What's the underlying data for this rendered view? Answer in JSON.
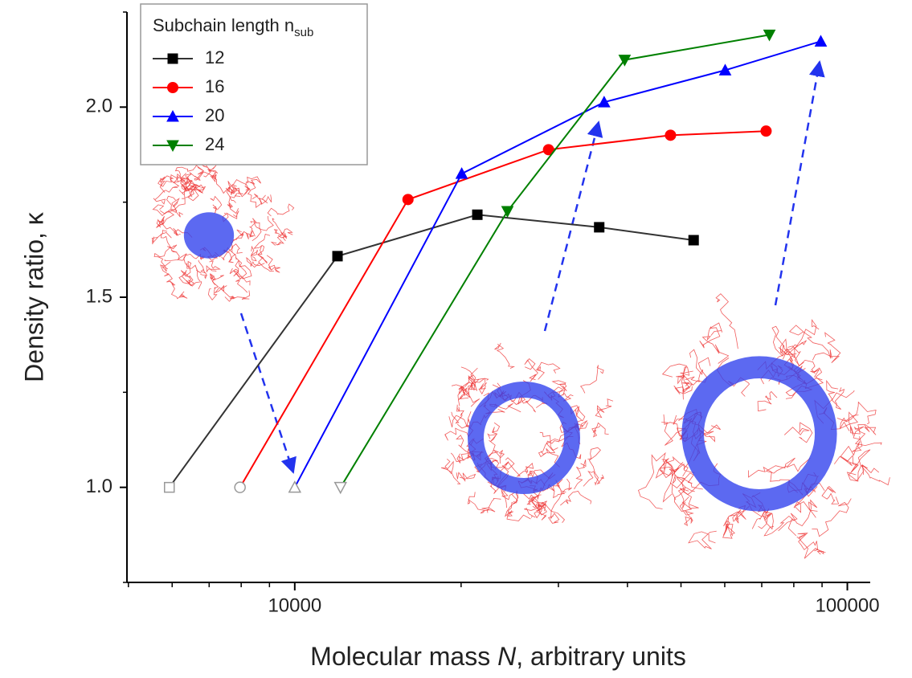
{
  "chart_data": {
    "type": "line",
    "x_label": [
      "Molecular mass ",
      "N",
      ", arbitrary units"
    ],
    "y_label": "Density ratio, κ",
    "legend_title": "Subchain length n",
    "legend_title_subscript": "sub",
    "log_x": true,
    "xlim": [
      4970,
      110000
    ],
    "ylim": [
      0.75,
      2.25
    ],
    "xticks": [
      10000,
      100000
    ],
    "xminorticks": [
      5000,
      6000,
      7000,
      8000,
      9000,
      20000,
      30000,
      40000,
      50000,
      60000,
      70000,
      80000,
      90000
    ],
    "yticks": [
      {
        "value": 1,
        "label": "1.0"
      },
      {
        "value": 1.5,
        "label": "1.5"
      },
      {
        "value": 2,
        "label": "2.0"
      }
    ],
    "yminorticks": [
      0.75,
      1.25,
      1.75,
      2.25
    ],
    "first_point_hollow": true,
    "hollow_color": "#999999",
    "series": [
      {
        "name": "12",
        "color": "#000000",
        "line_color": "#333333",
        "marker": "square",
        "x": [
          5930,
          11950,
          21400,
          35560,
          52700
        ],
        "values": [
          1.0,
          1.608,
          1.717,
          1.684,
          1.65
        ]
      },
      {
        "name": "16",
        "color": "#ff0000",
        "line_color": "#ff0000",
        "marker": "circle",
        "x": [
          7960,
          16030,
          28790,
          47860,
          71280
        ],
        "values": [
          1.0,
          1.757,
          1.888,
          1.926,
          1.937
        ]
      },
      {
        "name": "20",
        "color": "#0000ff",
        "line_color": "#0000ff",
        "marker": "triangle-up",
        "x": [
          10000,
          20050,
          36300,
          60100,
          89530
        ],
        "values": [
          1.0,
          1.825,
          2.013,
          2.097,
          2.173
        ]
      },
      {
        "name": "24",
        "color": "#008000",
        "line_color": "#008000",
        "marker": "triangle-down",
        "x": [
          12100,
          24260,
          39540,
          72270
        ],
        "values": [
          1.0,
          1.726,
          2.124,
          2.19
        ]
      }
    ]
  }
}
